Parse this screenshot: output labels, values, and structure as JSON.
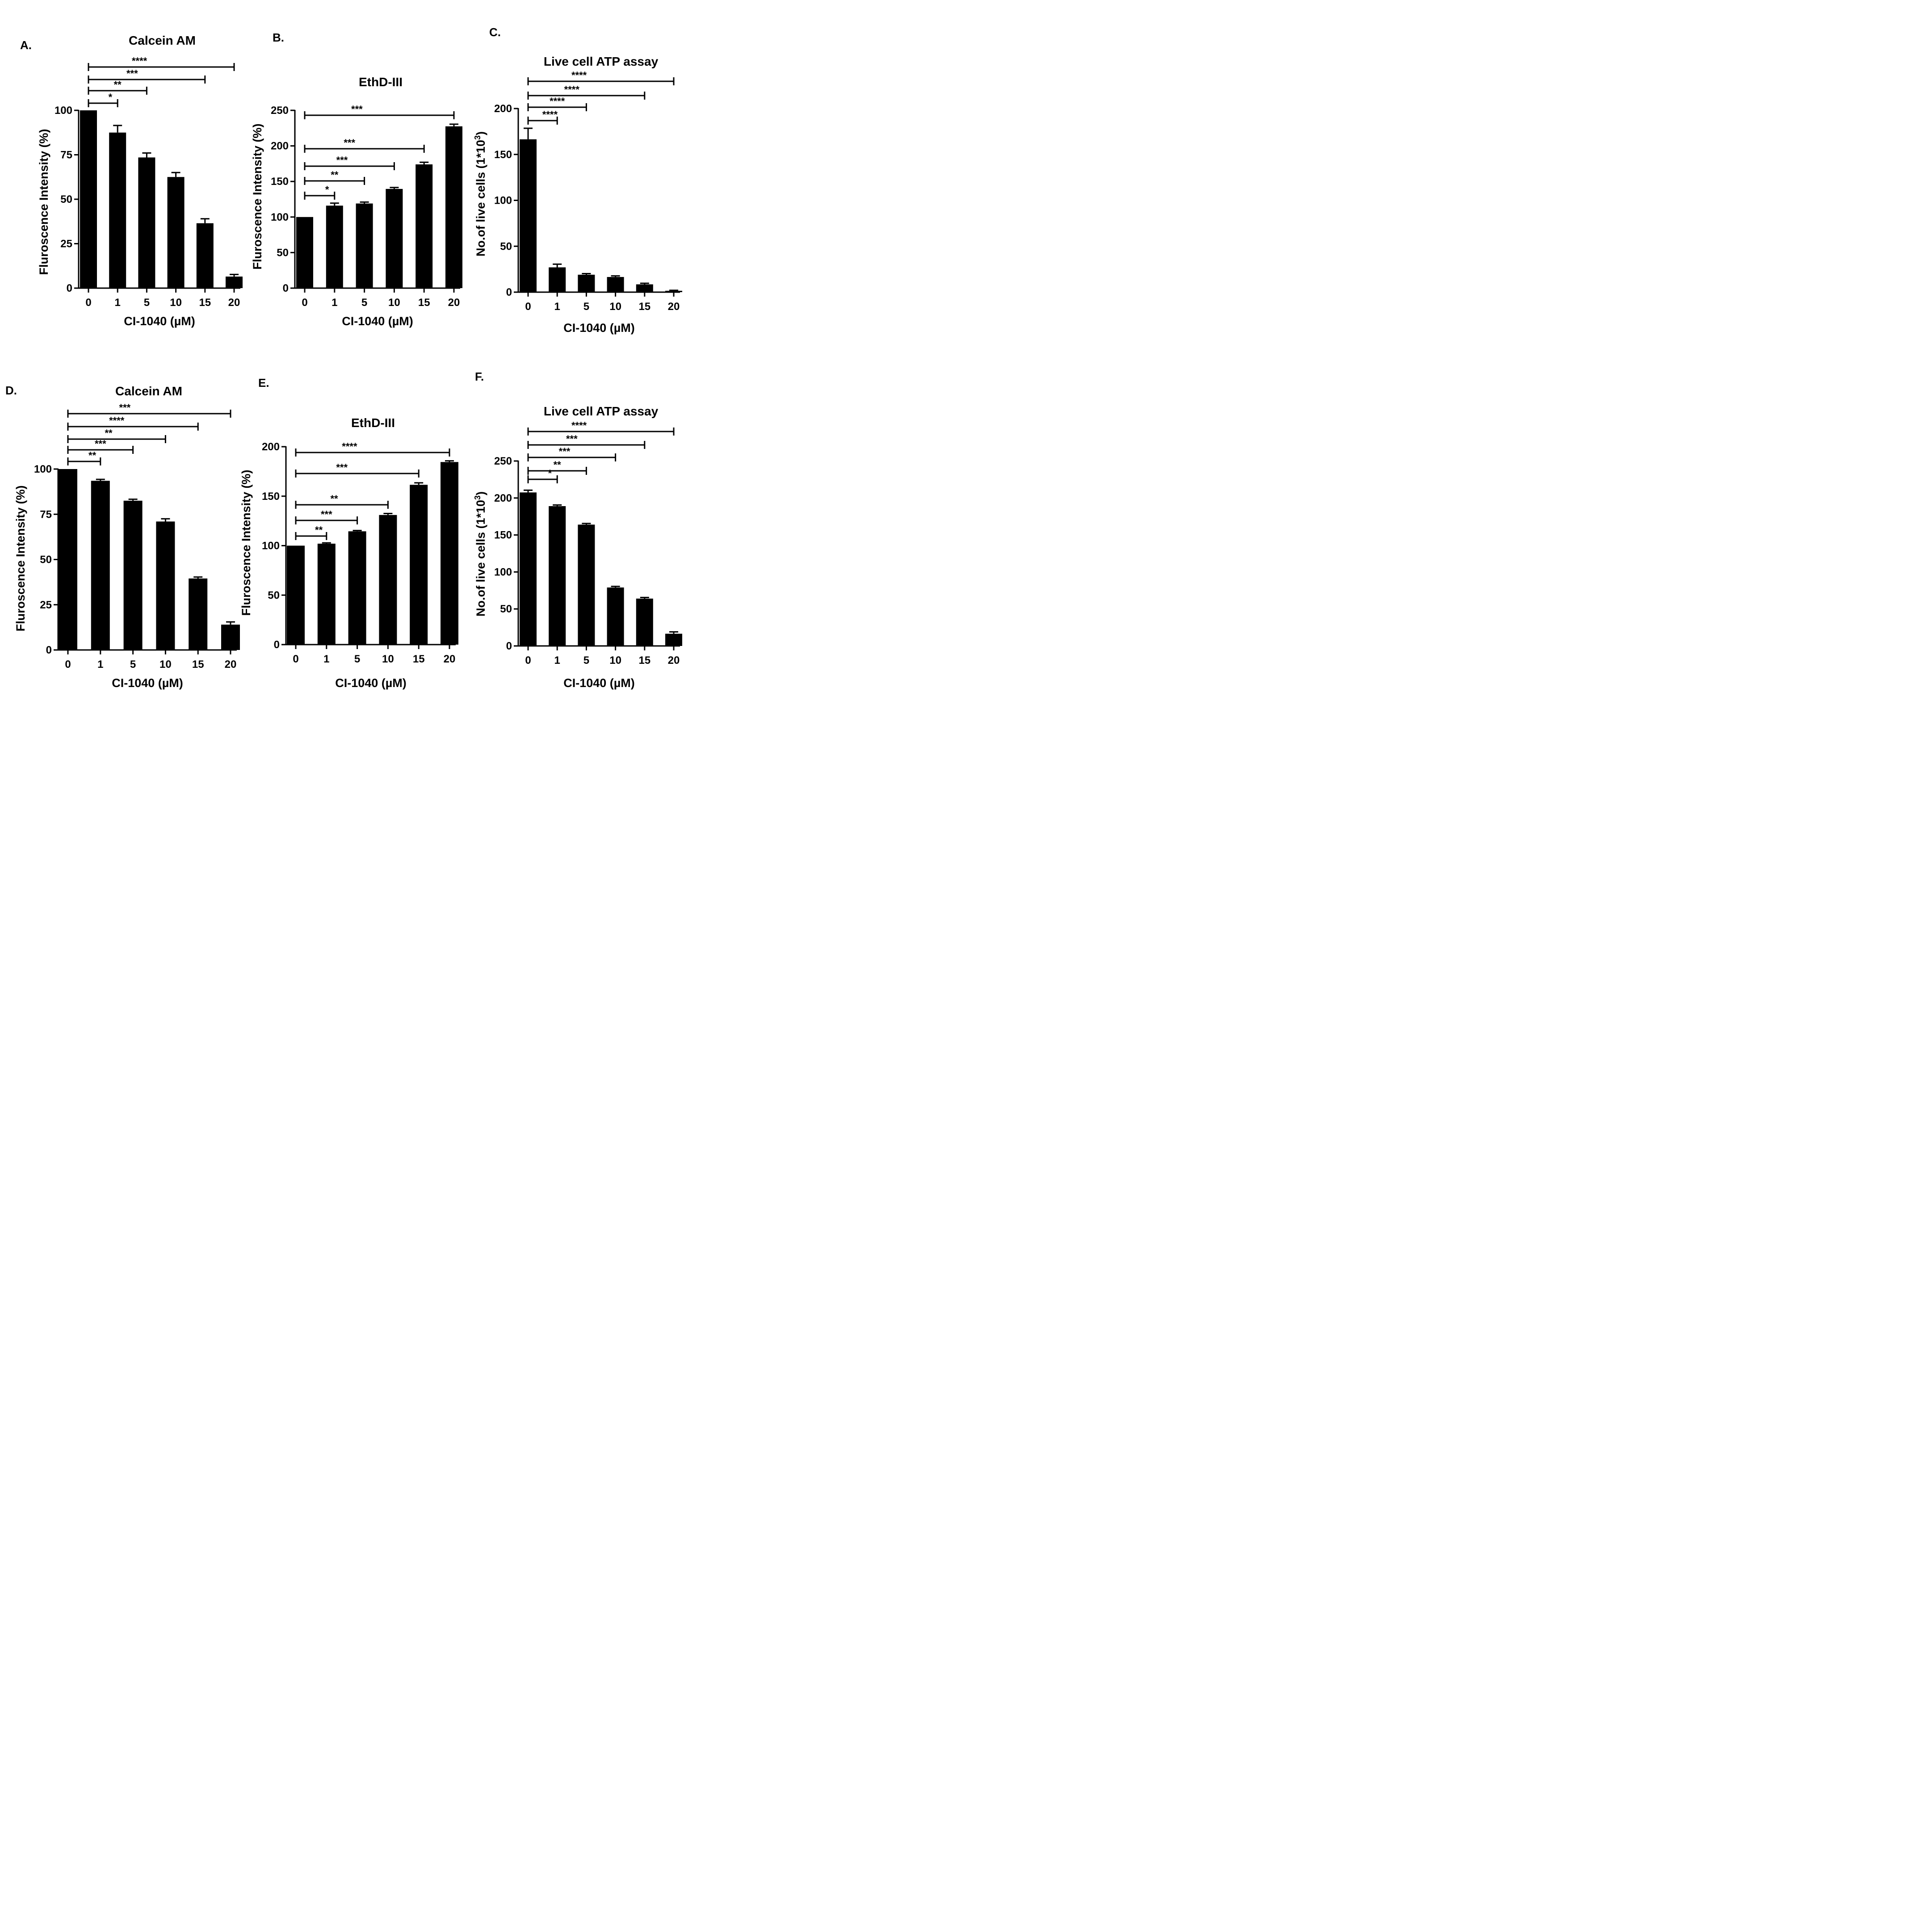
{
  "chart_data": [
    {
      "panel": "A.",
      "type": "bar",
      "title": "Calcein AM",
      "xlabel": "CI-1040 (µM)",
      "ylabel": "Fluroscence Intensity (%)",
      "categories": [
        "0",
        "1",
        "5",
        "10",
        "15",
        "20"
      ],
      "values": [
        100,
        87.5,
        73.5,
        62.5,
        36.5,
        6.5
      ],
      "errors": [
        0,
        4,
        2.5,
        2.5,
        2.5,
        1.2
      ],
      "ylim": [
        0,
        100
      ],
      "yticks": [
        0,
        25,
        50,
        75,
        100
      ],
      "significance": [
        {
          "from": 0,
          "to": 1,
          "label": "*"
        },
        {
          "from": 0,
          "to": 2,
          "label": "**"
        },
        {
          "from": 0,
          "to": 4,
          "label": "***"
        },
        {
          "from": 0,
          "to": 5,
          "label": "****"
        }
      ]
    },
    {
      "panel": "B.",
      "type": "bar",
      "title": "EthD-III",
      "xlabel": "CI-1040 (µM)",
      "ylabel": "Fluroscence Intensity (%)",
      "categories": [
        "0",
        "1",
        "5",
        "10",
        "15",
        "20"
      ],
      "values": [
        100,
        116,
        119,
        139.5,
        174,
        227.5
      ],
      "errors": [
        0,
        3.5,
        2,
        2,
        3,
        3
      ],
      "ylim": [
        0,
        250
      ],
      "yticks": [
        0,
        50,
        100,
        150,
        200,
        250
      ],
      "significance": [
        {
          "from": 0,
          "to": 1,
          "label": "*"
        },
        {
          "from": 0,
          "to": 2,
          "label": "**"
        },
        {
          "from": 0,
          "to": 3,
          "label": "***"
        },
        {
          "from": 0,
          "to": 4,
          "label": "***"
        },
        {
          "from": 0,
          "to": 5,
          "label": "***"
        }
      ]
    },
    {
      "panel": "C.",
      "type": "bar",
      "title": "Live cell ATP assay",
      "xlabel": "CI-1040 (µM)",
      "ylabel": "No.of live cells (1*10",
      "ylabel_sup": "3",
      "ylabel_end": ")",
      "categories": [
        "0",
        "1",
        "5",
        "10",
        "15",
        "20"
      ],
      "values": [
        166.5,
        27,
        19,
        16.5,
        8.5,
        1.5
      ],
      "errors": [
        12,
        3.5,
        1.2,
        1.2,
        1.2,
        0.5
      ],
      "ylim": [
        0,
        200
      ],
      "yticks": [
        0,
        50,
        100,
        150,
        200
      ],
      "significance": [
        {
          "from": 0,
          "to": 1,
          "label": "****"
        },
        {
          "from": 0,
          "to": 2,
          "label": "****"
        },
        {
          "from": 0,
          "to": 4,
          "label": "****"
        },
        {
          "from": 0,
          "to": 5,
          "label": "****"
        }
      ]
    },
    {
      "panel": "D.",
      "type": "bar",
      "title": "Calcein AM",
      "xlabel": "CI-1040 (µM)",
      "ylabel": "Fluroscence Intensity (%)",
      "categories": [
        "0",
        "1",
        "5",
        "10",
        "15",
        "20"
      ],
      "values": [
        100,
        93.5,
        82.5,
        71,
        39.5,
        14
      ],
      "errors": [
        0,
        0.8,
        0.8,
        1.5,
        0.8,
        1.5
      ],
      "ylim": [
        0,
        100
      ],
      "yticks": [
        0,
        25,
        50,
        75,
        100
      ],
      "significance": [
        {
          "from": 0,
          "to": 1,
          "label": "**"
        },
        {
          "from": 0,
          "to": 2,
          "label": "***"
        },
        {
          "from": 0,
          "to": 3,
          "label": "**"
        },
        {
          "from": 0,
          "to": 4,
          "label": "****"
        },
        {
          "from": 0,
          "to": 5,
          "label": "***"
        }
      ]
    },
    {
      "panel": "E.",
      "type": "bar",
      "title": "EthD-III",
      "xlabel": "CI-1040 (µM)",
      "ylabel": "Fluroscence Intensity (%)",
      "categories": [
        "0",
        "1",
        "5",
        "10",
        "15",
        "20"
      ],
      "values": [
        100,
        102,
        114.5,
        131,
        161.5,
        184.5
      ],
      "errors": [
        0,
        0.8,
        0.8,
        1.5,
        2,
        1.2
      ],
      "ylim": [
        0,
        200
      ],
      "yticks": [
        0,
        50,
        100,
        150,
        200
      ],
      "significance": [
        {
          "from": 0,
          "to": 1,
          "label": "**"
        },
        {
          "from": 0,
          "to": 2,
          "label": "***"
        },
        {
          "from": 0,
          "to": 3,
          "label": "**"
        },
        {
          "from": 0,
          "to": 4,
          "label": "***"
        },
        {
          "from": 0,
          "to": 5,
          "label": "****"
        }
      ]
    },
    {
      "panel": "F.",
      "type": "bar",
      "title": "Live cell ATP assay",
      "xlabel": "CI-1040 (µM)",
      "ylabel": "No.of live cells (1*10",
      "ylabel_sup": "3",
      "ylabel_end": ")",
      "categories": [
        "0",
        "1",
        "5",
        "10",
        "15",
        "20"
      ],
      "values": [
        207.5,
        189,
        164,
        79,
        64,
        16.5
      ],
      "errors": [
        3,
        1.5,
        1.5,
        1.5,
        1.5,
        2.5
      ],
      "ylim": [
        0,
        250
      ],
      "yticks": [
        0,
        50,
        100,
        150,
        200,
        250
      ],
      "significance": [
        {
          "from": 0,
          "to": 1,
          "label": "*"
        },
        {
          "from": 0,
          "to": 2,
          "label": "**"
        },
        {
          "from": 0,
          "to": 3,
          "label": "***"
        },
        {
          "from": 0,
          "to": 4,
          "label": "***"
        },
        {
          "from": 0,
          "to": 5,
          "label": "****"
        }
      ]
    }
  ]
}
